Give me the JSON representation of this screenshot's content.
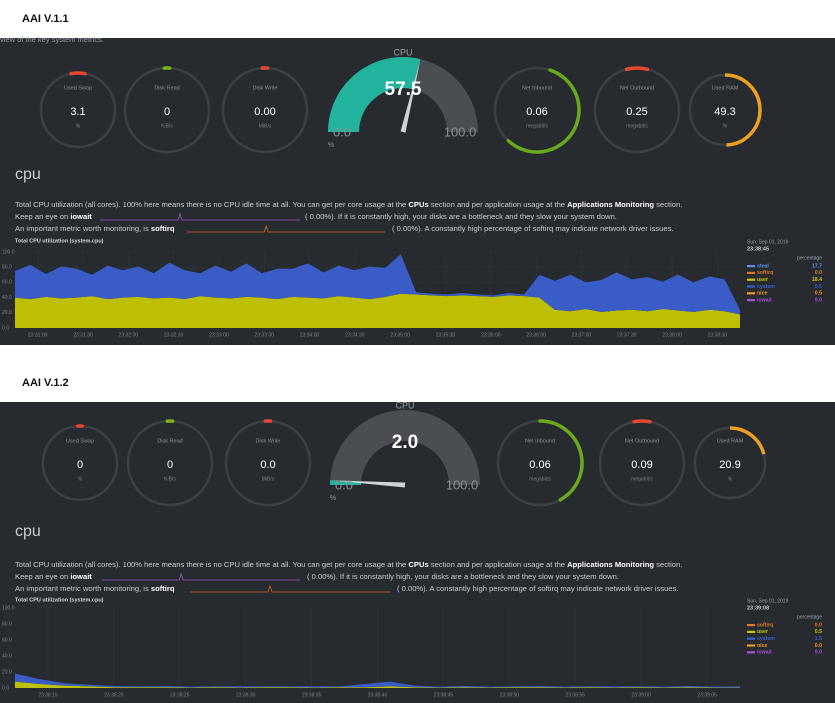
{
  "panels": [
    {
      "title": "AAI V.1.1",
      "subtitle": "view of the key system metrics.",
      "gauges": [
        {
          "label": "Used Swap",
          "value": "3.1",
          "unit": "%"
        },
        {
          "label": "Disk Read",
          "value": "0",
          "unit": "KiB/s"
        },
        {
          "label": "Disk Write",
          "value": "0.00",
          "unit": "MiB/s"
        },
        {
          "label": "Net Inbound",
          "value": "0.06",
          "unit": "megabit/s"
        },
        {
          "label": "Net Outbound",
          "value": "0.25",
          "unit": "megabit/s"
        },
        {
          "label": "Used RAM",
          "value": "49.3",
          "unit": "%"
        }
      ],
      "cpu_gauge": {
        "label": "CPU",
        "value": "57.5",
        "min": "0.0",
        "max": "100.0",
        "unit": "%"
      },
      "section": "cpu",
      "description": {
        "line1": [
          "Total CPU utilization (all cores). 100% here means there is no CPU idle time at all. You can get per core usage at the ",
          "CPUs",
          " section and per application usage at the ",
          "Applications Monitoring",
          " section."
        ],
        "line2": [
          "Keep an eye on ",
          "iowait",
          "(      0.00%). If it is constantly high, your disks are a bottleneck and they slow your system down."
        ],
        "line3": [
          "An important metric worth monitoring, is ",
          "softirq",
          "(      0.00%). A constantly high percentage of softirq may indicate network driver issues."
        ]
      },
      "chart": {
        "title": "Total CPU utilization (system.cpu)",
        "ylim": [
          0,
          100
        ],
        "yticks": [
          {
            "value": 100,
            "label": "100.0"
          },
          {
            "value": 80,
            "label": "80.0"
          },
          {
            "value": 60,
            "label": "60.0"
          },
          {
            "value": 40,
            "label": "40.0"
          },
          {
            "value": 20,
            "label": "20.0"
          },
          {
            "value": 0,
            "label": "0.0"
          }
        ],
        "xticks": [
          "23:31:00",
          "23:31:30",
          "23:32:00",
          "23:32:30",
          "23:33:00",
          "23:33:30",
          "23:34:00",
          "23:34:30",
          "23:35:00",
          "23:35:30",
          "23:36:00",
          "23:36:30",
          "23:37:00",
          "23:37:30",
          "23:38:00",
          "23:38:30"
        ],
        "legend_date": "Sun, Sep 01, 2019",
        "legend_time": "23:38:45",
        "legend_unit": "percentage",
        "series": [
          {
            "name": "steal",
            "color": "#5b8fe8",
            "current": "17.7"
          },
          {
            "name": "softirq",
            "color": "#e07b22",
            "current": "0.0"
          },
          {
            "name": "user",
            "color": "#c7c700",
            "current": "18.4",
            "values": [
              40,
              38,
              41,
              39,
              40,
              42,
              38,
              40,
              41,
              39,
              40,
              38,
              42,
              40,
              39,
              41,
              40,
              38,
              41,
              40,
              39,
              42,
              40,
              38,
              41,
              45,
              44,
              43,
              42,
              43,
              42,
              41,
              43,
              42,
              40,
              24,
              22,
              25,
              21,
              23,
              24,
              22,
              25,
              23,
              21,
              24,
              22,
              18
            ]
          },
          {
            "name": "system",
            "color": "#3b5fcf",
            "current": "5.5",
            "values": [
              35,
              45,
              30,
              42,
              38,
              28,
              44,
              36,
              40,
              33,
              46,
              38,
              30,
              42,
              35,
              44,
              32,
              40,
              37,
              45,
              34,
              40,
              36,
              43,
              38,
              52,
              3,
              2,
              2,
              3,
              2,
              2,
              3,
              2,
              30,
              38,
              48,
              35,
              42,
              50,
              40,
              45,
              36,
              47,
              39,
              44,
              42,
              6
            ]
          },
          {
            "name": "nice",
            "color": "#f29a1a",
            "current": "0.5"
          },
          {
            "name": "iowait",
            "color": "#a74fd8",
            "current": "0.0"
          }
        ]
      }
    },
    {
      "title": "AAI V.1.2",
      "gauges": [
        {
          "label": "Used Swap",
          "value": "0",
          "unit": "%"
        },
        {
          "label": "Disk Read",
          "value": "0",
          "unit": "KiB/s"
        },
        {
          "label": "Disk Write",
          "value": "0.0",
          "unit": "MiB/s"
        },
        {
          "label": "Net Inbound",
          "value": "0.06",
          "unit": "megabit/s"
        },
        {
          "label": "Net Outbound",
          "value": "0.09",
          "unit": "megabit/s"
        },
        {
          "label": "Used RAM",
          "value": "20.9",
          "unit": "%"
        }
      ],
      "cpu_gauge": {
        "label": "CPU",
        "value": "2.0",
        "min": "0.0",
        "max": "100.0",
        "unit": "%"
      },
      "section": "cpu",
      "description": {
        "line1": [
          "Total CPU utilization (all cores). 100% here means there is no CPU idle time at all. You can get per core usage at the ",
          "CPUs",
          " section and per application usage at the ",
          "Applications Monitoring",
          " section."
        ],
        "line2": [
          "Keep an eye on ",
          "iowait",
          "(      0.00%). If it is constantly high, your disks are a bottleneck and they slow your system down."
        ],
        "line3": [
          "An important metric worth monitoring, is ",
          "softirq",
          "(      0.00%). A constantly high percentage of softirq may indicate network driver issues."
        ]
      },
      "chart": {
        "title": "Total CPU utilization (system.cpu)",
        "ylim": [
          0,
          100
        ],
        "yticks": [
          {
            "value": 100,
            "label": "100.0"
          },
          {
            "value": 80,
            "label": "80.0"
          },
          {
            "value": 60,
            "label": "60.0"
          },
          {
            "value": 40,
            "label": "40.0"
          },
          {
            "value": 20,
            "label": "20.0"
          },
          {
            "value": 0,
            "label": "0.0"
          }
        ],
        "xticks": [
          "23:38:15",
          "23:38:20",
          "23:38:25",
          "23:38:30",
          "23:38:35",
          "23:38:40",
          "23:38:45",
          "23:38:50",
          "23:38:55",
          "23:39:00",
          "23:39:05"
        ],
        "legend_date": "Sun, Sep 01, 2019",
        "legend_time": "23:39:08",
        "legend_unit": "percentage",
        "series": [
          {
            "name": "softirq",
            "color": "#e07b22",
            "current": "0.0"
          },
          {
            "name": "user",
            "color": "#c7c700",
            "current": "0.5",
            "values": [
              8,
              5,
              3,
              2,
              1,
              1,
              1,
              0.5,
              1,
              0.5,
              1,
              1,
              0.5,
              1,
              1,
              2,
              1,
              0.5,
              1,
              0.5,
              1,
              1,
              0.5,
              1,
              0.5,
              1,
              0.5,
              1,
              0.5,
              0.5
            ]
          },
          {
            "name": "system",
            "color": "#3b5fcf",
            "current": "1.5",
            "values": [
              10,
              6,
              3,
              2,
              1.5,
              1,
              1.5,
              1,
              1,
              1.5,
              1,
              1,
              1.5,
              1,
              4,
              6,
              2,
              1,
              1.5,
              1,
              1,
              1.5,
              1,
              1,
              1.5,
              1,
              1,
              1.5,
              1,
              1.5
            ]
          },
          {
            "name": "nice",
            "color": "#f29a1a",
            "current": "0.0"
          },
          {
            "name": "iowait",
            "color": "#a74fd8",
            "current": "0.0"
          }
        ]
      }
    }
  ]
}
